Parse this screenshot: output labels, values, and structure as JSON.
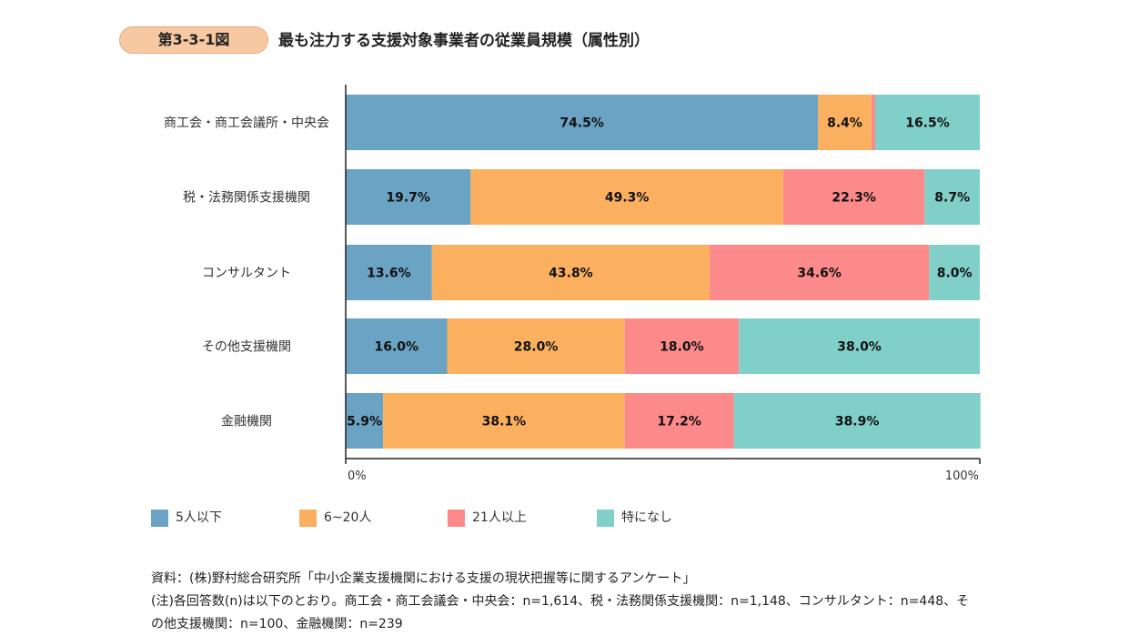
{
  "header": {
    "badge": "第3-3-1図",
    "title": "最も注力する支援対象事業者の従業員規模（属性別）"
  },
  "chart_data": {
    "type": "bar",
    "orientation": "horizontal",
    "stacked": true,
    "categories": [
      "商工会・商工会議所・中央会",
      "税・法務関係支援機関",
      "コンサルタント",
      "その他支援機関",
      "金融機関"
    ],
    "series": [
      {
        "name": "5人以下",
        "color": "#6aa3c3",
        "values": [
          74.5,
          19.7,
          13.6,
          16.0,
          5.9
        ]
      },
      {
        "name": "6~20人",
        "color": "#fbb05f",
        "values": [
          8.4,
          49.3,
          43.8,
          28.0,
          38.1
        ]
      },
      {
        "name": "21人以上",
        "color": "#fd8a8b",
        "values": [
          0.6,
          22.3,
          34.6,
          18.0,
          17.2
        ]
      },
      {
        "name": "特になし",
        "color": "#80cfc8",
        "values": [
          16.5,
          8.7,
          8.0,
          38.0,
          38.9
        ]
      }
    ],
    "hidden_labels": [
      [
        2,
        0
      ]
    ],
    "xlim": [
      0,
      100
    ],
    "x_tick_labels": [
      "0%",
      "100%"
    ],
    "grid": false,
    "legend_position": "bottom"
  },
  "notes": {
    "source": "資料：(株)野村総合研究所「中小企業支援機関における支援の現状把握等に関するアンケート」",
    "note": "(注)各回答数(n)は以下のとおり。商工会・商工会議会・中央会：n=1,614、税・法務関係支援機関：n=1,148、コンサルタント：n=448、その他支援機関：n=100、金融機関：n=239"
  }
}
